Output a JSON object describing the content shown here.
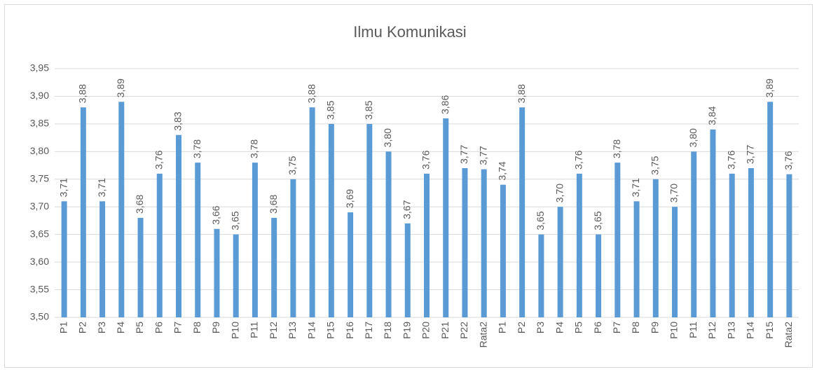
{
  "chart_data": {
    "type": "bar",
    "title": "Ilmu Komunikasi",
    "categories": [
      "P1",
      "P2",
      "P3",
      "P4",
      "P5",
      "P6",
      "P7",
      "P8",
      "P9",
      "P10",
      "P11",
      "P12",
      "P13",
      "P14",
      "P15",
      "P16",
      "P17",
      "P18",
      "P19",
      "P20",
      "P21",
      "P22",
      "Rata2",
      "P1",
      "P2",
      "P3",
      "P4",
      "P5",
      "P6",
      "P7",
      "P8",
      "P9",
      "P10",
      "P11",
      "P12",
      "P13",
      "P14",
      "P15",
      "Rata2"
    ],
    "values": [
      3.71,
      3.88,
      3.71,
      3.89,
      3.68,
      3.76,
      3.83,
      3.78,
      3.66,
      3.65,
      3.78,
      3.68,
      3.75,
      3.88,
      3.85,
      3.69,
      3.85,
      3.8,
      3.67,
      3.76,
      3.86,
      3.77,
      3.768,
      3.74,
      3.88,
      3.65,
      3.7,
      3.76,
      3.65,
      3.78,
      3.71,
      3.75,
      3.7,
      3.8,
      3.84,
      3.76,
      3.77,
      3.89,
      3.759
    ],
    "value_labels": [
      "3,71",
      "3,88",
      "3,71",
      "3,89",
      "3,68",
      "3,76",
      "3,83",
      "3,78",
      "3,66",
      "3,65",
      "3,78",
      "3,68",
      "3,75",
      "3,88",
      "3,85",
      "3,69",
      "3,85",
      "3,80",
      "3,67",
      "3,76",
      "3,86",
      "3,77",
      "3,77",
      "3,74",
      "3,88",
      "3,65",
      "3,70",
      "3,76",
      "3,65",
      "3,78",
      "3,71",
      "3,75",
      "3,70",
      "3,80",
      "3,84",
      "3,76",
      "3,77",
      "3,89",
      "3,76"
    ],
    "color": "#5b9bd5",
    "ylim": [
      3.5,
      3.95
    ],
    "yticks": [
      {
        "value": 3.5,
        "label": "3,50"
      },
      {
        "value": 3.55,
        "label": "3,55"
      },
      {
        "value": 3.6,
        "label": "3,60"
      },
      {
        "value": 3.65,
        "label": "3,65"
      },
      {
        "value": 3.7,
        "label": "3,70"
      },
      {
        "value": 3.75,
        "label": "3,75"
      },
      {
        "value": 3.8,
        "label": "3,80"
      },
      {
        "value": 3.85,
        "label": "3,85"
      },
      {
        "value": 3.9,
        "label": "3,90"
      },
      {
        "value": 3.95,
        "label": "3,95"
      }
    ],
    "grid": true
  }
}
